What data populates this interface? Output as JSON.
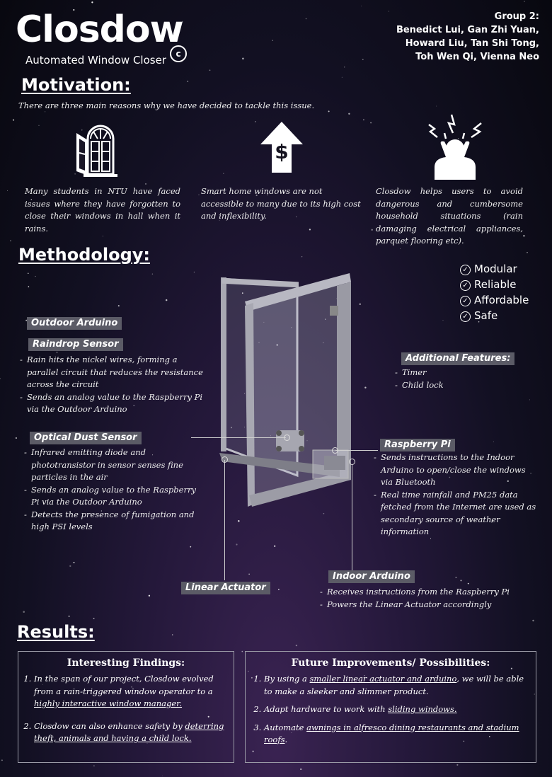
{
  "header": {
    "logo_text": "Closdow",
    "copyright_symbol": "c",
    "subtitle": "Automated Window Closer",
    "group_lines": [
      "Group 2:",
      "Benedict Lui, Gan Zhi Yuan,",
      "Howard Liu, Tan Shi Tong,",
      "Toh Wen Qi, Vienna Neo"
    ]
  },
  "motivation": {
    "heading": "Motivation:",
    "intro": "There are three main reasons why we have decided to tackle this issue.",
    "items": [
      {
        "icon": "open-window-icon",
        "text": "Many students in NTU have faced issues where they have forgotten to close their windows in hall when it rains."
      },
      {
        "icon": "dollar-up-arrow-icon",
        "text": "Smart home windows are not accessible to many due to its high cost and inflexibility."
      },
      {
        "icon": "stressed-person-icon",
        "text": "Closdow helps users to avoid dangerous and cumbersome household situations (rain damaging electrical appliances, parquet flooring etc)."
      }
    ]
  },
  "methodology": {
    "heading": "Methodology:",
    "checklist": [
      "Modular",
      "Reliable",
      "Affordable",
      "Safe"
    ],
    "outdoor_arduino_label": "Outdoor Arduino",
    "raindrop_label": "Raindrop Sensor",
    "raindrop_points": [
      "Rain hits the nickel wires, forming a parallel circuit that reduces the resistance across the circuit",
      "Sends an analog value to the Raspberry Pi via the Outdoor Arduino"
    ],
    "dust_label": "Optical Dust Sensor",
    "dust_points": [
      "Infrared emitting diode and phototransistor in sensor senses fine particles in the air",
      "Sends an analog value to the Raspberry Pi via the Outdoor Arduino",
      "Detects the presence of fumigation and high PSI levels"
    ],
    "additional_label": "Additional Features:",
    "additional_points": [
      "Timer",
      "Child lock"
    ],
    "pi_label": "Raspberry Pi",
    "pi_points": [
      "Sends instructions to the Indoor Arduino to open/close the windows via Bluetooth",
      "Real time rainfall and PM25 data fetched from the Internet are used as secondary source of weather information"
    ],
    "actuator_label": "Linear Actuator",
    "indoor_label": "Indoor Arduino",
    "indoor_points": [
      "Receives instructions from the Raspberry Pi",
      "Powers the Linear Actuator accordingly"
    ]
  },
  "results": {
    "heading": "Results:",
    "findings_title": "Interesting Findings:",
    "findings": [
      {
        "plain": "In the span of our project, Closdow evolved from a rain-triggered window operator to a ",
        "underlined": "highly interactive window manager.",
        "after": ""
      },
      {
        "plain": "Closdow can also enhance safety by ",
        "underlined": "deterring theft, animals and having a child lock.",
        "after": ""
      }
    ],
    "future_title": "Future Improvements/ Possibilities:",
    "future": [
      {
        "plain": " By using a ",
        "underlined": "smaller linear actuator and arduino",
        "after": ", we will be able to make a sleeker and slimmer product."
      },
      {
        "plain": "Adapt hardware to work with ",
        "underlined": "sliding windows.",
        "after": ""
      },
      {
        "plain": "Automate ",
        "underlined": "awnings in alfresco dining restaurants and stadium roofs",
        "after": "."
      }
    ]
  }
}
